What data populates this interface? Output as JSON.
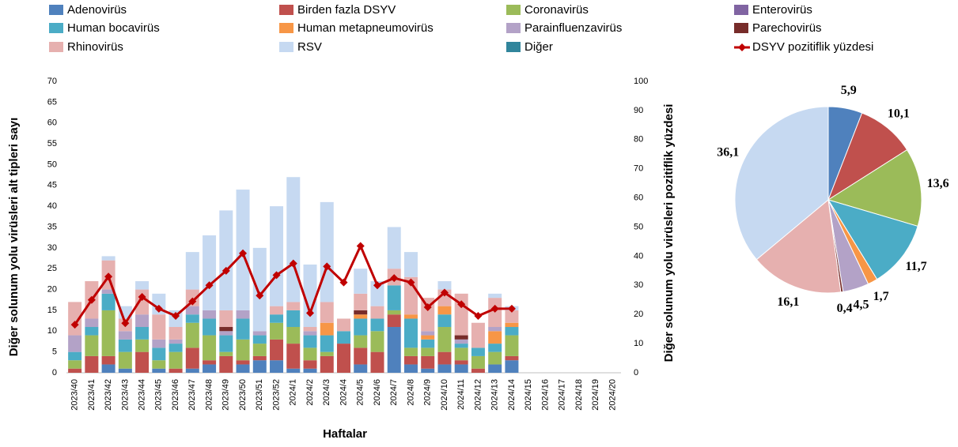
{
  "chart_data": [
    {
      "type": "bar",
      "stacked": true,
      "x_label": "Haftalar",
      "y_label": "Diğer solunum yolu virüsleri alt tipleri sayı",
      "y2_label": "Diğer solunum yolu virüsleri pozitiflik yüzdesi",
      "categories": [
        "2023/40",
        "2023/41",
        "2023/42",
        "2023/43",
        "2023/44",
        "2023/45",
        "2023/46",
        "2023/47",
        "2023/48",
        "2023/49",
        "2023/50",
        "2023/51",
        "2023/52",
        "2024/1",
        "2024/2",
        "2024/3",
        "2024/4",
        "2024/5",
        "2024/6",
        "2024/7",
        "2024/8",
        "2024/9",
        "2024/10",
        "2024/11",
        "2024/12",
        "2024/13",
        "2024/14",
        "2024/15",
        "2024/16",
        "2024/17",
        "2024/18",
        "2024/19",
        "2024/20"
      ],
      "ylim": [
        0,
        70
      ],
      "yticks": [
        0,
        5,
        10,
        15,
        20,
        25,
        30,
        35,
        40,
        45,
        50,
        55,
        60,
        65,
        70
      ],
      "y2lim": [
        0,
        100
      ],
      "y2ticks": [
        0,
        10,
        20,
        30,
        40,
        50,
        60,
        70,
        80,
        90,
        100
      ],
      "series": [
        {
          "name": "Adenovirüs",
          "color": "#4f81bd",
          "values": [
            0,
            0,
            2,
            1,
            0,
            1,
            0,
            1,
            2,
            0,
            2,
            3,
            3,
            1,
            1,
            0,
            0,
            2,
            0,
            11,
            2,
            1,
            2,
            2,
            0,
            2,
            3,
            null,
            null,
            null,
            null,
            null,
            null
          ]
        },
        {
          "name": "Birden fazla DSYV",
          "color": "#c0504d",
          "values": [
            1,
            4,
            2,
            0,
            5,
            0,
            1,
            5,
            1,
            4,
            1,
            1,
            5,
            6,
            2,
            4,
            7,
            4,
            5,
            3,
            2,
            3,
            3,
            1,
            1,
            0,
            1,
            null,
            null,
            null,
            null,
            null,
            null
          ]
        },
        {
          "name": "Coronavirüs",
          "color": "#9bbb59",
          "values": [
            2,
            5,
            11,
            4,
            3,
            2,
            4,
            6,
            6,
            1,
            5,
            3,
            4,
            4,
            3,
            1,
            0,
            3,
            5,
            1,
            2,
            2,
            6,
            3,
            3,
            3,
            5,
            null,
            null,
            null,
            null,
            null,
            null
          ]
        },
        {
          "name": "Enterovirüs",
          "color": "#8064a2",
          "values": [
            0,
            0,
            0,
            0,
            0,
            0,
            0,
            0,
            0,
            0,
            0,
            0,
            0,
            0,
            0,
            0,
            0,
            0,
            0,
            0,
            0,
            0,
            0,
            0,
            0,
            0,
            0,
            null,
            null,
            null,
            null,
            null,
            null
          ]
        },
        {
          "name": "Human bocavirüs",
          "color": "#4bacc6",
          "values": [
            2,
            2,
            4,
            3,
            3,
            3,
            2,
            2,
            4,
            4,
            5,
            2,
            2,
            4,
            3,
            4,
            3,
            4,
            3,
            6,
            7,
            2,
            3,
            1,
            2,
            2,
            2,
            null,
            null,
            null,
            null,
            null,
            null
          ]
        },
        {
          "name": "Human metapneumovirüs",
          "color": "#f79646",
          "values": [
            0,
            0,
            0,
            0,
            0,
            0,
            0,
            0,
            0,
            0,
            0,
            0,
            0,
            0,
            0,
            3,
            0,
            1,
            0,
            0,
            1,
            1,
            2,
            0,
            0,
            3,
            1,
            null,
            null,
            null,
            null,
            null,
            null
          ]
        },
        {
          "name": "Parainfluenzavirüs",
          "color": "#b3a2c7",
          "values": [
            4,
            2,
            1,
            2,
            3,
            2,
            1,
            2,
            2,
            1,
            2,
            1,
            0,
            0,
            1,
            0,
            0,
            0,
            0,
            0,
            0,
            1,
            0,
            1,
            0,
            1,
            0,
            null,
            null,
            null,
            null,
            null,
            null
          ]
        },
        {
          "name": "Parechovirüs",
          "color": "#772c2a",
          "values": [
            0,
            0,
            0,
            0,
            0,
            0,
            0,
            0,
            0,
            1,
            0,
            0,
            0,
            0,
            0,
            0,
            0,
            1,
            0,
            0,
            0,
            0,
            0,
            1,
            0,
            0,
            0,
            null,
            null,
            null,
            null,
            null,
            null
          ]
        },
        {
          "name": "Rhinovirüs",
          "color": "#e6b0af",
          "values": [
            8,
            9,
            7,
            3,
            6,
            6,
            3,
            4,
            0,
            4,
            0,
            0,
            2,
            2,
            1,
            5,
            3,
            4,
            3,
            4,
            9,
            8,
            4,
            10,
            6,
            7,
            3,
            null,
            null,
            null,
            null,
            null,
            null
          ]
        },
        {
          "name": "RSV",
          "color": "#c6d9f1",
          "values": [
            0,
            0,
            1,
            3,
            2,
            5,
            4,
            9,
            18,
            24,
            29,
            20,
            24,
            30,
            15,
            24,
            0,
            6,
            6,
            10,
            6,
            0,
            2,
            0,
            0,
            1,
            1,
            null,
            null,
            null,
            null,
            null,
            null
          ]
        },
        {
          "name": "Diğer",
          "color": "#31859c",
          "values": [
            0,
            0,
            0,
            0,
            0,
            0,
            0,
            0,
            0,
            0,
            0,
            0,
            0,
            0,
            0,
            0,
            0,
            0,
            0,
            0,
            0,
            0,
            0,
            0,
            0,
            0,
            0,
            null,
            null,
            null,
            null,
            null,
            null
          ]
        },
        {
          "name": "DSYV pozitiflik yüzdesi",
          "type": "line",
          "axis": "y2",
          "color": "#c00000",
          "values": [
            16.5,
            25,
            33,
            17,
            26,
            22,
            19.5,
            24.5,
            30,
            35,
            41,
            26.5,
            33.5,
            37.5,
            20.5,
            36.5,
            31,
            43.5,
            30,
            32.5,
            31,
            22.5,
            27.5,
            23.5,
            19.5,
            22,
            22,
            null,
            null,
            null,
            null,
            null,
            null
          ]
        }
      ]
    },
    {
      "type": "pie",
      "values": [
        5.9,
        10.1,
        13.6,
        11.7,
        1.7,
        4.5,
        0.4,
        16.1,
        36.1
      ],
      "value_labels": [
        "5,9",
        "10,1",
        "13,6",
        "11,7",
        "1,7",
        "4,5",
        "0,4",
        "16,1",
        "36,1"
      ],
      "colors": [
        "#4f81bd",
        "#c0504d",
        "#9bbb59",
        "#4bacc6",
        "#f79646",
        "#b3a2c7",
        "#772c2a",
        "#e6b0af",
        "#c6d9f1"
      ]
    }
  ]
}
